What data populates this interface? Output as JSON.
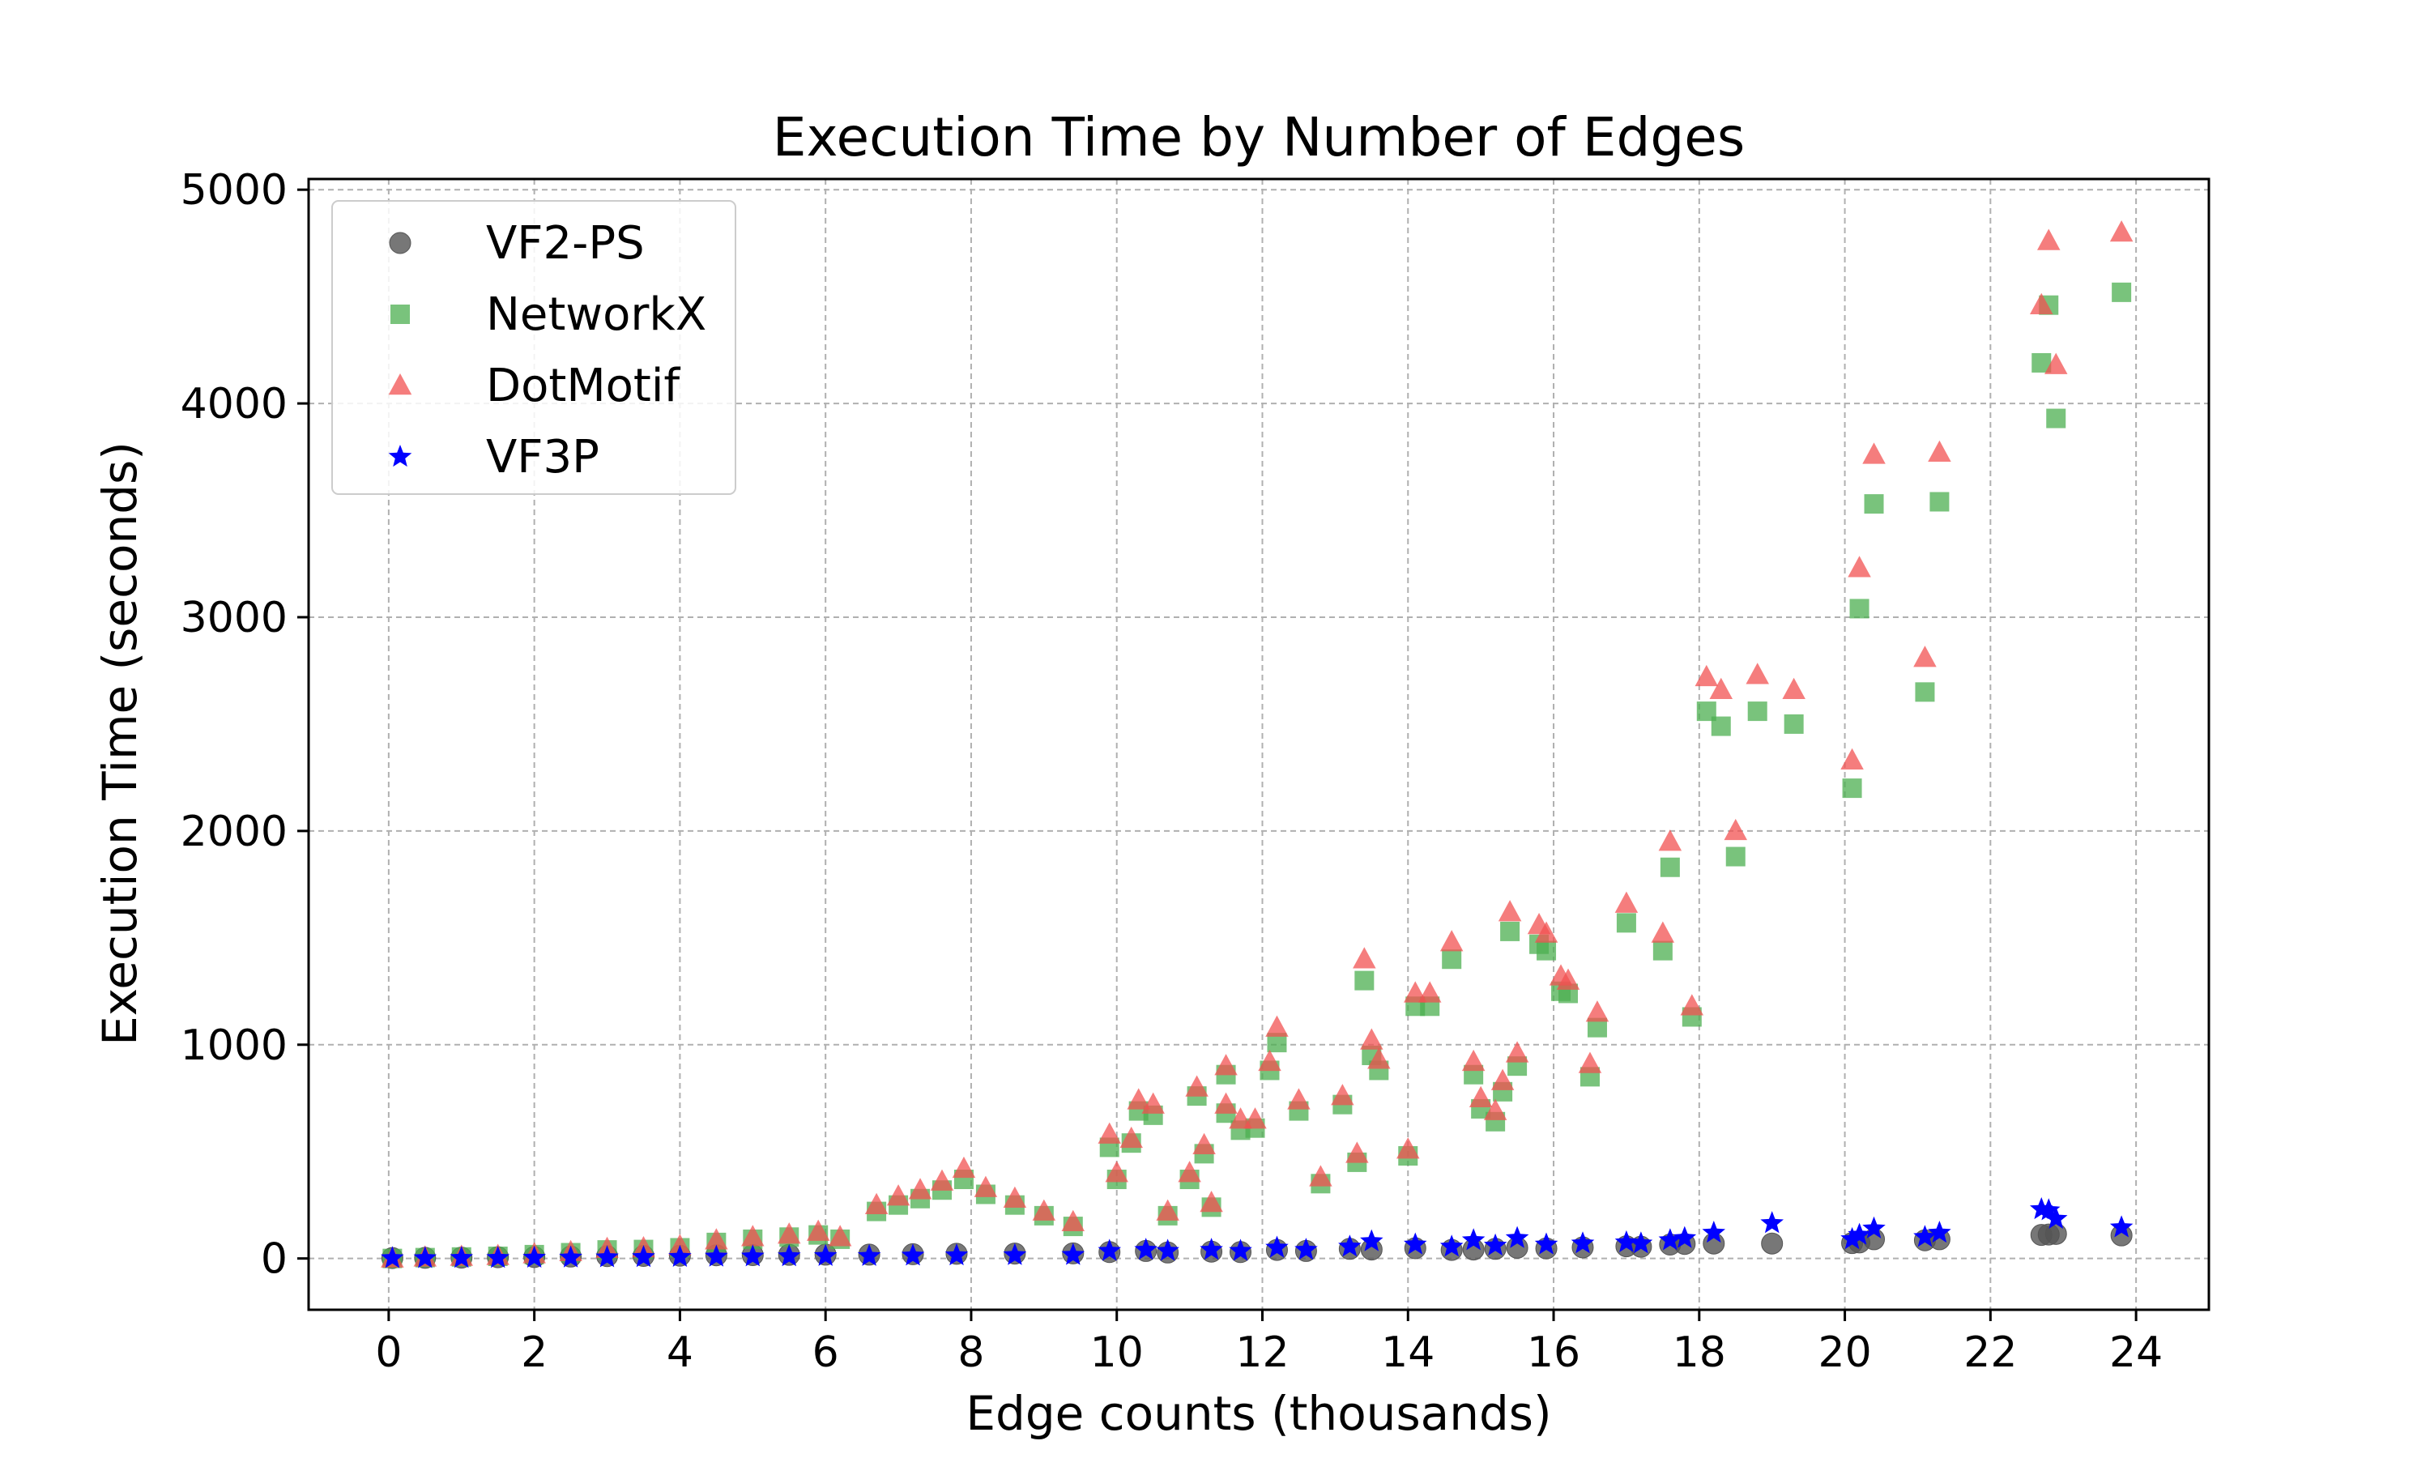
{
  "chart_data": {
    "type": "scatter",
    "title": "Execution Time by Number of Edges",
    "xlabel": "Edge   counts (thousands)",
    "ylabel": "Execution Time (seconds)",
    "xlim": [
      -1.1,
      25.0
    ],
    "ylim": [
      -240,
      5050
    ],
    "xticks": [
      0,
      2,
      4,
      6,
      8,
      10,
      12,
      14,
      16,
      18,
      20,
      22,
      24
    ],
    "yticks": [
      0,
      1000,
      2000,
      3000,
      4000,
      5000
    ],
    "grid": true,
    "legend_position": "upper-left",
    "series": [
      {
        "name": "VF2-PS",
        "marker": "circle",
        "color": "#555555",
        "points": [
          [
            0.05,
            2
          ],
          [
            0.5,
            3
          ],
          [
            1.0,
            4
          ],
          [
            1.5,
            6
          ],
          [
            2.0,
            7
          ],
          [
            2.5,
            9
          ],
          [
            3.0,
            11
          ],
          [
            3.5,
            12
          ],
          [
            4.0,
            13
          ],
          [
            4.5,
            15
          ],
          [
            5.0,
            16
          ],
          [
            5.5,
            17
          ],
          [
            6.0,
            18
          ],
          [
            6.6,
            18
          ],
          [
            7.2,
            20
          ],
          [
            7.8,
            22
          ],
          [
            8.6,
            23
          ],
          [
            9.4,
            24
          ],
          [
            9.9,
            30
          ],
          [
            10.4,
            35
          ],
          [
            10.7,
            28
          ],
          [
            11.3,
            32
          ],
          [
            11.7,
            30
          ],
          [
            12.2,
            40
          ],
          [
            12.6,
            35
          ],
          [
            13.2,
            45
          ],
          [
            13.5,
            42
          ],
          [
            14.1,
            48
          ],
          [
            14.6,
            40
          ],
          [
            14.9,
            42
          ],
          [
            15.2,
            45
          ],
          [
            15.5,
            50
          ],
          [
            15.9,
            47
          ],
          [
            16.4,
            52
          ],
          [
            17.0,
            57
          ],
          [
            17.2,
            55
          ],
          [
            17.6,
            65
          ],
          [
            17.8,
            68
          ],
          [
            18.2,
            70
          ],
          [
            19.0,
            70
          ],
          [
            20.1,
            72
          ],
          [
            20.2,
            75
          ],
          [
            20.4,
            90
          ],
          [
            21.1,
            85
          ],
          [
            21.3,
            90
          ],
          [
            22.7,
            110
          ],
          [
            22.8,
            112
          ],
          [
            22.9,
            115
          ],
          [
            23.8,
            108
          ]
        ]
      },
      {
        "name": "NetworkX",
        "marker": "square",
        "color": "#4caf50",
        "points": [
          [
            0.05,
            0
          ],
          [
            0.5,
            4
          ],
          [
            1.0,
            7
          ],
          [
            1.5,
            10
          ],
          [
            2.0,
            18
          ],
          [
            2.5,
            27
          ],
          [
            3.0,
            40
          ],
          [
            3.5,
            42
          ],
          [
            4.0,
            50
          ],
          [
            4.5,
            75
          ],
          [
            5.0,
            90
          ],
          [
            5.5,
            100
          ],
          [
            5.9,
            110
          ],
          [
            6.2,
            90
          ],
          [
            6.7,
            220
          ],
          [
            7.0,
            250
          ],
          [
            7.3,
            280
          ],
          [
            7.6,
            320
          ],
          [
            7.9,
            370
          ],
          [
            8.2,
            300
          ],
          [
            8.6,
            250
          ],
          [
            9.0,
            200
          ],
          [
            9.4,
            150
          ],
          [
            9.9,
            520
          ],
          [
            10.0,
            370
          ],
          [
            10.2,
            540
          ],
          [
            10.3,
            690
          ],
          [
            10.5,
            670
          ],
          [
            10.7,
            200
          ],
          [
            11.0,
            370
          ],
          [
            11.1,
            760
          ],
          [
            11.2,
            490
          ],
          [
            11.3,
            240
          ],
          [
            11.5,
            860
          ],
          [
            11.5,
            680
          ],
          [
            11.7,
            600
          ],
          [
            11.9,
            610
          ],
          [
            12.1,
            880
          ],
          [
            12.2,
            1010
          ],
          [
            12.5,
            690
          ],
          [
            12.8,
            350
          ],
          [
            13.1,
            720
          ],
          [
            13.3,
            450
          ],
          [
            13.4,
            1300
          ],
          [
            13.5,
            950
          ],
          [
            13.6,
            880
          ],
          [
            14.0,
            480
          ],
          [
            14.1,
            1180
          ],
          [
            14.3,
            1180
          ],
          [
            14.6,
            1400
          ],
          [
            14.9,
            860
          ],
          [
            15.0,
            700
          ],
          [
            15.2,
            640
          ],
          [
            15.3,
            780
          ],
          [
            15.4,
            1530
          ],
          [
            15.5,
            900
          ],
          [
            15.8,
            1470
          ],
          [
            15.9,
            1440
          ],
          [
            16.1,
            1250
          ],
          [
            16.2,
            1240
          ],
          [
            16.5,
            850
          ],
          [
            16.6,
            1080
          ],
          [
            17.0,
            1570
          ],
          [
            17.5,
            1440
          ],
          [
            17.6,
            1830
          ],
          [
            17.9,
            1130
          ],
          [
            18.1,
            2560
          ],
          [
            18.3,
            2490
          ],
          [
            18.5,
            1880
          ],
          [
            18.8,
            2560
          ],
          [
            19.3,
            2500
          ],
          [
            20.1,
            2200
          ],
          [
            20.2,
            3040
          ],
          [
            20.4,
            3530
          ],
          [
            21.1,
            2650
          ],
          [
            21.3,
            3540
          ],
          [
            22.7,
            4190
          ],
          [
            22.8,
            4460
          ],
          [
            22.9,
            3930
          ],
          [
            23.8,
            4520
          ]
        ]
      },
      {
        "name": "DotMotif",
        "marker": "triangle",
        "color": "#f25252",
        "points": [
          [
            0.05,
            0
          ],
          [
            0.5,
            5
          ],
          [
            1.0,
            8
          ],
          [
            1.5,
            12
          ],
          [
            2.0,
            20
          ],
          [
            2.5,
            30
          ],
          [
            3.0,
            45
          ],
          [
            3.5,
            48
          ],
          [
            4.0,
            58
          ],
          [
            4.5,
            85
          ],
          [
            5.0,
            100
          ],
          [
            5.5,
            112
          ],
          [
            5.9,
            125
          ],
          [
            6.2,
            100
          ],
          [
            6.7,
            250
          ],
          [
            7.0,
            290
          ],
          [
            7.3,
            320
          ],
          [
            7.6,
            360
          ],
          [
            7.9,
            420
          ],
          [
            8.2,
            330
          ],
          [
            8.6,
            280
          ],
          [
            9.0,
            220
          ],
          [
            9.4,
            170
          ],
          [
            9.9,
            580
          ],
          [
            10.0,
            400
          ],
          [
            10.2,
            560
          ],
          [
            10.3,
            740
          ],
          [
            10.5,
            720
          ],
          [
            10.7,
            220
          ],
          [
            11.0,
            400
          ],
          [
            11.1,
            800
          ],
          [
            11.2,
            530
          ],
          [
            11.3,
            260
          ],
          [
            11.5,
            900
          ],
          [
            11.5,
            720
          ],
          [
            11.7,
            650
          ],
          [
            11.9,
            650
          ],
          [
            12.1,
            920
          ],
          [
            12.2,
            1080
          ],
          [
            12.5,
            740
          ],
          [
            12.8,
            380
          ],
          [
            13.1,
            760
          ],
          [
            13.3,
            490
          ],
          [
            13.4,
            1400
          ],
          [
            13.5,
            1020
          ],
          [
            13.6,
            930
          ],
          [
            14.0,
            510
          ],
          [
            14.1,
            1240
          ],
          [
            14.3,
            1240
          ],
          [
            14.6,
            1480
          ],
          [
            14.9,
            920
          ],
          [
            15.0,
            750
          ],
          [
            15.2,
            690
          ],
          [
            15.3,
            830
          ],
          [
            15.4,
            1620
          ],
          [
            15.5,
            960
          ],
          [
            15.8,
            1560
          ],
          [
            15.9,
            1520
          ],
          [
            16.1,
            1320
          ],
          [
            16.2,
            1300
          ],
          [
            16.5,
            910
          ],
          [
            16.6,
            1150
          ],
          [
            17.0,
            1660
          ],
          [
            17.5,
            1520
          ],
          [
            17.6,
            1950
          ],
          [
            17.9,
            1180
          ],
          [
            18.1,
            2720
          ],
          [
            18.3,
            2660
          ],
          [
            18.5,
            2000
          ],
          [
            18.8,
            2730
          ],
          [
            19.3,
            2660
          ],
          [
            20.1,
            2330
          ],
          [
            20.2,
            3230
          ],
          [
            20.4,
            3760
          ],
          [
            21.1,
            2810
          ],
          [
            21.3,
            3770
          ],
          [
            22.7,
            4460
          ],
          [
            22.8,
            4760
          ],
          [
            22.9,
            4180
          ],
          [
            23.8,
            4800
          ]
        ]
      },
      {
        "name": "VF3P",
        "marker": "star",
        "color": "#0000ff",
        "points": [
          [
            0.05,
            1
          ],
          [
            0.5,
            1
          ],
          [
            1.0,
            2
          ],
          [
            1.5,
            2
          ],
          [
            2.0,
            3
          ],
          [
            2.5,
            4
          ],
          [
            3.0,
            5
          ],
          [
            3.5,
            6
          ],
          [
            4.0,
            7
          ],
          [
            4.5,
            8
          ],
          [
            5.0,
            9
          ],
          [
            5.5,
            10
          ],
          [
            6.0,
            11
          ],
          [
            6.6,
            11
          ],
          [
            7.2,
            13
          ],
          [
            7.8,
            14
          ],
          [
            8.6,
            15
          ],
          [
            9.4,
            16
          ],
          [
            9.9,
            35
          ],
          [
            10.4,
            40
          ],
          [
            10.7,
            35
          ],
          [
            11.3,
            40
          ],
          [
            11.7,
            35
          ],
          [
            12.2,
            50
          ],
          [
            12.6,
            40
          ],
          [
            13.2,
            55
          ],
          [
            13.5,
            80
          ],
          [
            14.1,
            65
          ],
          [
            14.6,
            55
          ],
          [
            14.9,
            85
          ],
          [
            15.2,
            60
          ],
          [
            15.5,
            95
          ],
          [
            15.9,
            65
          ],
          [
            16.4,
            70
          ],
          [
            17.0,
            75
          ],
          [
            17.2,
            70
          ],
          [
            17.6,
            85
          ],
          [
            17.8,
            95
          ],
          [
            18.2,
            120
          ],
          [
            19.0,
            165
          ],
          [
            20.1,
            90
          ],
          [
            20.2,
            110
          ],
          [
            20.4,
            140
          ],
          [
            21.1,
            100
          ],
          [
            21.3,
            120
          ],
          [
            22.7,
            230
          ],
          [
            22.8,
            225
          ],
          [
            22.9,
            185
          ],
          [
            23.8,
            145
          ]
        ]
      }
    ]
  }
}
